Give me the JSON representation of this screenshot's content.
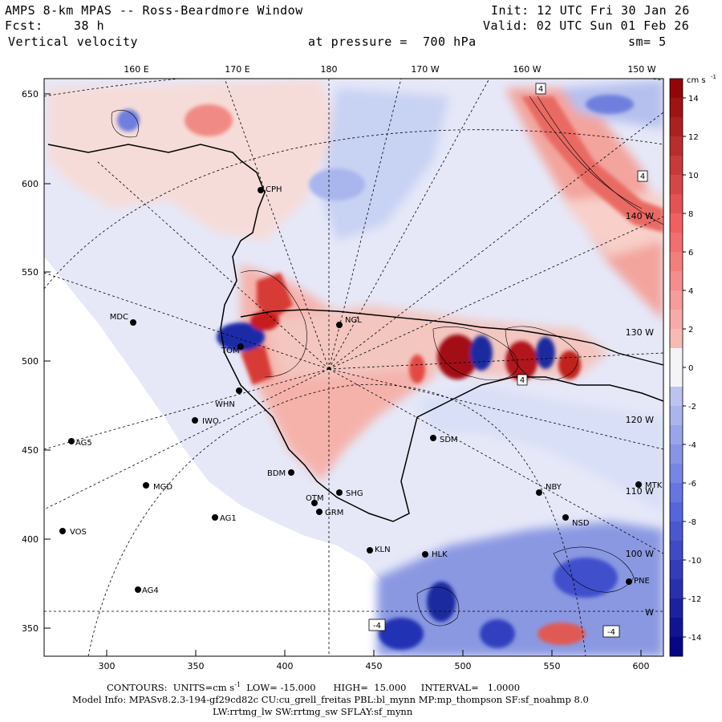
{
  "header": {
    "title": "AMPS 8-km MPAS -- Ross-Beardmore Window",
    "init": "Init: 12 UTC Fri 30 Jan 26",
    "fcst_label": "Fcst:",
    "fcst_value": "38 h",
    "valid": "Valid: 02 UTC Sun 01 Feb 26",
    "field": "Vertical velocity",
    "pressure": "at pressure =  700 hPa",
    "smoothing": "sm= 5"
  },
  "top_axis": [
    "160 E",
    "170 E",
    "180",
    "170 W",
    "160 W",
    "150 W"
  ],
  "left_axis": [
    "650",
    "600",
    "550",
    "500",
    "450",
    "400",
    "350"
  ],
  "bottom_axis": [
    "300",
    "350",
    "400",
    "450",
    "500",
    "550",
    "600"
  ],
  "meridian_labels": [
    "140 W",
    "130 W",
    "120 W",
    "110 W",
    "100 W",
    "W"
  ],
  "stations": [
    {
      "id": "MDC"
    },
    {
      "id": "NGL"
    },
    {
      "id": "CPH"
    },
    {
      "id": "TOM"
    },
    {
      "id": "WHN"
    },
    {
      "id": "IWO"
    },
    {
      "id": "AG5"
    },
    {
      "id": "MGD"
    },
    {
      "id": "AG1"
    },
    {
      "id": "VOS"
    },
    {
      "id": "AG4"
    },
    {
      "id": "BDM"
    },
    {
      "id": "SHG"
    },
    {
      "id": "OTM"
    },
    {
      "id": "GRM"
    },
    {
      "id": "SDM"
    },
    {
      "id": "KLN"
    },
    {
      "id": "HLK"
    },
    {
      "id": "NBY"
    },
    {
      "id": "NSD"
    },
    {
      "id": "MTK"
    },
    {
      "id": "PNE"
    }
  ],
  "contour_labels": [
    "4",
    "4",
    "4",
    "-4",
    "-4"
  ],
  "colorbar": {
    "units": "cm s",
    "units_exp": "-1",
    "ticks": [
      "14",
      "12",
      "10",
      "8",
      "6",
      "4",
      "2",
      "0",
      "-2",
      "-4",
      "-6",
      "-8",
      "-10",
      "-12",
      "-14"
    ],
    "min": -15,
    "max": 15
  },
  "footer": {
    "contours": "CONTOURS:  UNITS=cm s",
    "contours_exp": "-1",
    "contours_rest": "  LOW= -15.000      HIGH=  15.000     INTERVAL=   1.0000",
    "model_info": "Model Info: MPASv8.2.3-194-gf29cd82c CU:cu_grell_freitas PBL:bl_mynn MP:mp_thompson SF:sf_noahmp 8.0",
    "physics": "LW:rrtmg_lw SW:rrtmg_sw SFLAY:sf_mynn"
  },
  "colors": {
    "pos_max": "#8b0000",
    "pos_mid": "#f06060",
    "pos_low": "#fbd0cc",
    "neg_max": "#00007f",
    "neg_mid": "#5566dd",
    "neg_low": "#d4dcf6",
    "zero": "#f4f4f6"
  }
}
